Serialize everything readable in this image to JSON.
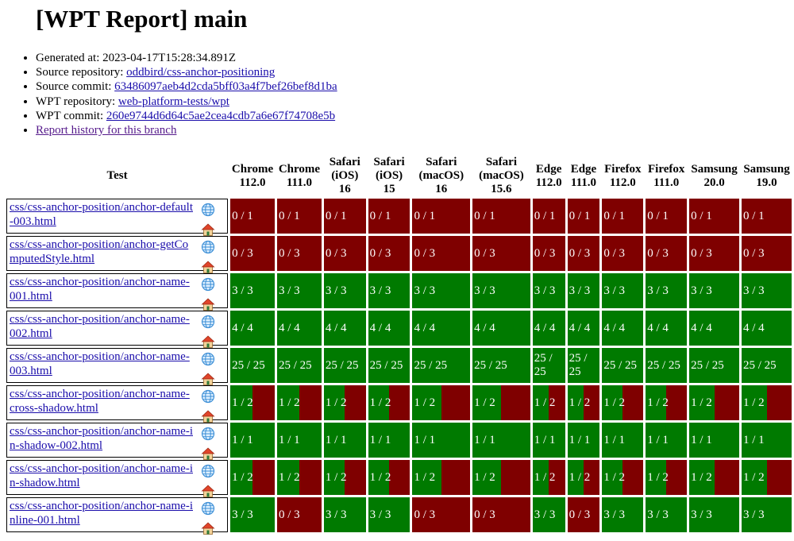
{
  "title": "[WPT Report] main",
  "meta": {
    "generated_label": "Generated at: ",
    "generated_value": "2023-04-17T15:28:34.891Z",
    "source_repo_label": "Source repository: ",
    "source_repo_value": "oddbird/css-anchor-positioning",
    "source_commit_label": "Source commit: ",
    "source_commit_value": "63486097aeb4d2cda5bff03a4f7bef26bef8d1ba",
    "wpt_repo_label": "WPT repository: ",
    "wpt_repo_value": "web-platform-tests/wpt",
    "wpt_commit_label": "WPT commit: ",
    "wpt_commit_value": "260e9744d6d64c5ae2cea4cdb7a6e67f74708e5b",
    "history_link": "Report history for this branch"
  },
  "table": {
    "test_header": "Test",
    "browsers": [
      {
        "name": "Chrome",
        "version": "112.0"
      },
      {
        "name": "Chrome",
        "version": "111.0"
      },
      {
        "name": "Safari (iOS)",
        "version": "16"
      },
      {
        "name": "Safari (iOS)",
        "version": "15"
      },
      {
        "name": "Safari (macOS)",
        "version": "16"
      },
      {
        "name": "Safari (macOS)",
        "version": "15.6"
      },
      {
        "name": "Edge",
        "version": "112.0"
      },
      {
        "name": "Edge",
        "version": "111.0"
      },
      {
        "name": "Firefox",
        "version": "112.0"
      },
      {
        "name": "Firefox",
        "version": "111.0"
      },
      {
        "name": "Samsung",
        "version": "20.0"
      },
      {
        "name": "Samsung",
        "version": "19.0"
      }
    ],
    "rows": [
      {
        "test": "css/css-anchor-position/anchor-default-003.html",
        "results": [
          "0 / 1",
          "0 / 1",
          "0 / 1",
          "0 / 1",
          "0 / 1",
          "0 / 1",
          "0 / 1",
          "0 / 1",
          "0 / 1",
          "0 / 1",
          "0 / 1",
          "0 / 1"
        ]
      },
      {
        "test": "css/css-anchor-position/anchor-getComputedStyle.html",
        "results": [
          "0 / 3",
          "0 / 3",
          "0 / 3",
          "0 / 3",
          "0 / 3",
          "0 / 3",
          "0 / 3",
          "0 / 3",
          "0 / 3",
          "0 / 3",
          "0 / 3",
          "0 / 3"
        ]
      },
      {
        "test": "css/css-anchor-position/anchor-name-001.html",
        "results": [
          "3 / 3",
          "3 / 3",
          "3 / 3",
          "3 / 3",
          "3 / 3",
          "3 / 3",
          "3 / 3",
          "3 / 3",
          "3 / 3",
          "3 / 3",
          "3 / 3",
          "3 / 3"
        ]
      },
      {
        "test": "css/css-anchor-position/anchor-name-002.html",
        "results": [
          "4 / 4",
          "4 / 4",
          "4 / 4",
          "4 / 4",
          "4 / 4",
          "4 / 4",
          "4 / 4",
          "4 / 4",
          "4 / 4",
          "4 / 4",
          "4 / 4",
          "4 / 4"
        ]
      },
      {
        "test": "css/css-anchor-position/anchor-name-003.html",
        "results": [
          "25 / 25",
          "25 / 25",
          "25 / 25",
          "25 / 25",
          "25 / 25",
          "25 / 25",
          "25 / 25",
          "25 / 25",
          "25 / 25",
          "25 / 25",
          "25 / 25",
          "25 / 25"
        ]
      },
      {
        "test": "css/css-anchor-position/anchor-name-cross-shadow.html",
        "results": [
          "1 / 2",
          "1 / 2",
          "1 / 2",
          "1 / 2",
          "1 / 2",
          "1 / 2",
          "1 / 2",
          "1 / 2",
          "1 / 2",
          "1 / 2",
          "1 / 2",
          "1 / 2"
        ]
      },
      {
        "test": "css/css-anchor-position/anchor-name-in-shadow-002.html",
        "results": [
          "1 / 1",
          "1 / 1",
          "1 / 1",
          "1 / 1",
          "1 / 1",
          "1 / 1",
          "1 / 1",
          "1 / 1",
          "1 / 1",
          "1 / 1",
          "1 / 1",
          "1 / 1"
        ]
      },
      {
        "test": "css/css-anchor-position/anchor-name-in-shadow.html",
        "results": [
          "1 / 2",
          "1 / 2",
          "1 / 2",
          "1 / 2",
          "1 / 2",
          "1 / 2",
          "1 / 2",
          "1 / 2",
          "1 / 2",
          "1 / 2",
          "1 / 2",
          "1 / 2"
        ]
      },
      {
        "test": "css/css-anchor-position/anchor-name-inline-001.html",
        "results": [
          "3 / 3",
          "0 / 3",
          "3 / 3",
          "3 / 3",
          "0 / 3",
          "0 / 3",
          "3 / 3",
          "0 / 3",
          "3 / 3",
          "3 / 3",
          "3 / 3",
          "3 / 3"
        ]
      }
    ]
  },
  "colors": {
    "pass": "#007a00",
    "fail": "#7f0000",
    "link": "#1a0dab",
    "visited_link": "#551a8b"
  },
  "icons": {
    "wpt_fyi": "globe-icon",
    "home": "house-icon"
  }
}
